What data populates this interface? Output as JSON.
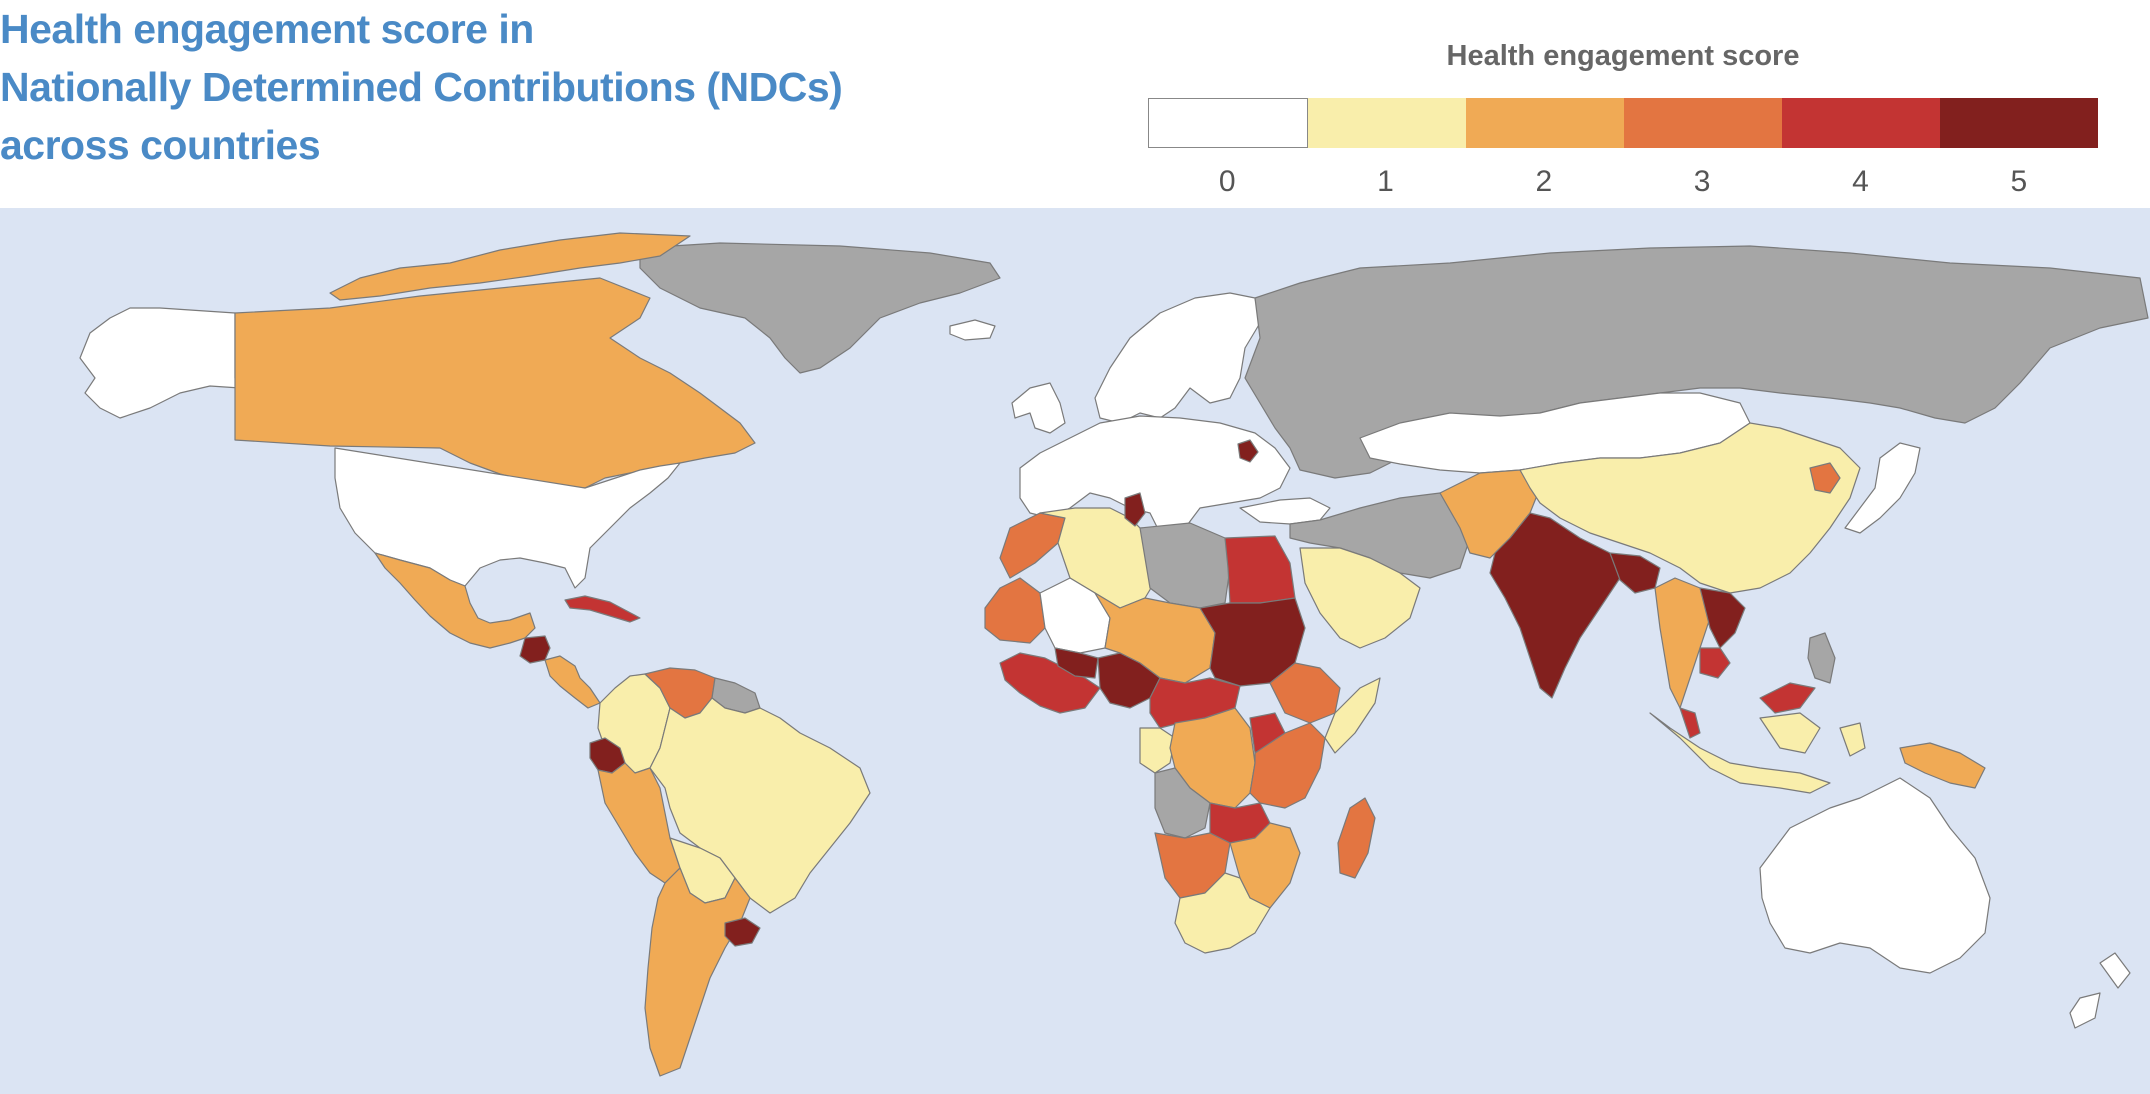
{
  "title_lines": [
    "Health engagement score in",
    "Nationally Determined Contributions (NDCs)",
    "across countries"
  ],
  "legend": {
    "title": "Health engagement score",
    "items": [
      {
        "label": "0",
        "color": "#ffffff"
      },
      {
        "label": "1",
        "color": "#f9eeab"
      },
      {
        "label": "2",
        "color": "#f0aa55"
      },
      {
        "label": "3",
        "color": "#e37541"
      },
      {
        "label": "4",
        "color": "#c33433"
      },
      {
        "label": "5",
        "color": "#82201e"
      }
    ],
    "no_data_color": "#a6a6a6"
  },
  "map": {
    "ocean_color": "#dbe4f3",
    "regions": [
      {
        "name": "greenland",
        "score": null
      },
      {
        "name": "alaska",
        "score": 0
      },
      {
        "name": "canada",
        "score": 2
      },
      {
        "name": "canada-arctic-islands",
        "score": 2
      },
      {
        "name": "usa",
        "score": 0
      },
      {
        "name": "mexico",
        "score": 2
      },
      {
        "name": "guatemala",
        "score": 5
      },
      {
        "name": "central-america",
        "score": 2
      },
      {
        "name": "cuba",
        "score": 4
      },
      {
        "name": "colombia",
        "score": 1
      },
      {
        "name": "venezuela",
        "score": 3
      },
      {
        "name": "guianas",
        "score": null
      },
      {
        "name": "ecuador",
        "score": 5
      },
      {
        "name": "peru",
        "score": 2
      },
      {
        "name": "brazil",
        "score": 1
      },
      {
        "name": "bolivia-paraguay",
        "score": 1
      },
      {
        "name": "argentina-chile",
        "score": 2
      },
      {
        "name": "uruguay",
        "score": 5
      },
      {
        "name": "western-europe",
        "score": 0
      },
      {
        "name": "scandinavia",
        "score": 0
      },
      {
        "name": "iceland",
        "score": 0
      },
      {
        "name": "uk-ireland",
        "score": 0
      },
      {
        "name": "moldova",
        "score": 5
      },
      {
        "name": "russia-central-asia",
        "score": null
      },
      {
        "name": "turkey",
        "score": 0
      },
      {
        "name": "kazakhstan-mongolia",
        "score": 0
      },
      {
        "name": "china",
        "score": 1
      },
      {
        "name": "north-korea",
        "score": 3
      },
      {
        "name": "japan",
        "score": 0
      },
      {
        "name": "iran-middle-east",
        "score": null
      },
      {
        "name": "saudi-arabia",
        "score": 1
      },
      {
        "name": "pakistan-afghanistan",
        "score": 2
      },
      {
        "name": "india",
        "score": 5
      },
      {
        "name": "bangladesh-nepal",
        "score": 5
      },
      {
        "name": "myanmar-thailand",
        "score": 2
      },
      {
        "name": "vietnam-laos",
        "score": 5
      },
      {
        "name": "cambodia",
        "score": 4
      },
      {
        "name": "malaysia",
        "score": 4
      },
      {
        "name": "indonesia",
        "score": 1
      },
      {
        "name": "philippines",
        "score": null
      },
      {
        "name": "papua-new-guinea",
        "score": 2
      },
      {
        "name": "australia",
        "score": 0
      },
      {
        "name": "new-zealand",
        "score": 0
      },
      {
        "name": "morocco",
        "score": 3
      },
      {
        "name": "algeria",
        "score": 1
      },
      {
        "name": "tunisia",
        "score": 5
      },
      {
        "name": "libya",
        "score": null
      },
      {
        "name": "egypt",
        "score": 4
      },
      {
        "name": "mauritania",
        "score": 3
      },
      {
        "name": "mali",
        "score": 0
      },
      {
        "name": "niger-chad",
        "score": 2
      },
      {
        "name": "sudan",
        "score": 5
      },
      {
        "name": "ethiopia",
        "score": 3
      },
      {
        "name": "somalia",
        "score": 1
      },
      {
        "name": "west-africa-coast",
        "score": 4
      },
      {
        "name": "burkina-faso",
        "score": 5
      },
      {
        "name": "nigeria",
        "score": 5
      },
      {
        "name": "cameroon-car",
        "score": 4
      },
      {
        "name": "gabon-congo",
        "score": 1
      },
      {
        "name": "drc",
        "score": 2
      },
      {
        "name": "kenya-tanzania",
        "score": 3
      },
      {
        "name": "uganda-rwanda",
        "score": 4
      },
      {
        "name": "angola",
        "score": null
      },
      {
        "name": "zambia",
        "score": 4
      },
      {
        "name": "namibia-botswana",
        "score": 3
      },
      {
        "name": "mozambique-zimbabwe",
        "score": 2
      },
      {
        "name": "south-africa",
        "score": 1
      },
      {
        "name": "madagascar",
        "score": 3
      }
    ]
  }
}
